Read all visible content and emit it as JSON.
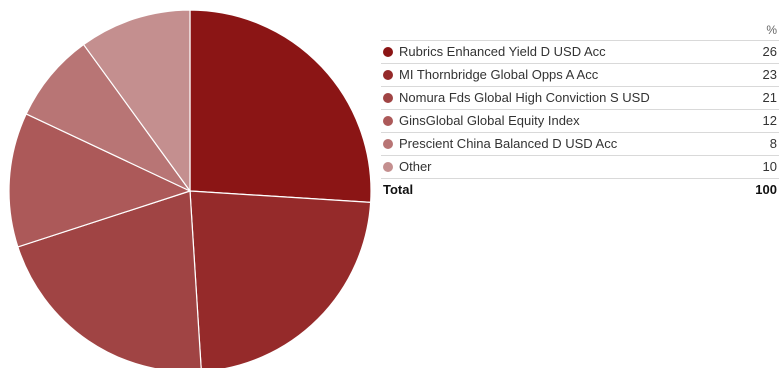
{
  "chart_data": {
    "type": "pie",
    "value_header": "%",
    "slices": [
      {
        "label": "Rubrics Enhanced Yield D USD Acc",
        "value": 26,
        "color": "#8b1515"
      },
      {
        "label": "MI Thornbridge Global Opps A Acc",
        "value": 23,
        "color": "#952a2a"
      },
      {
        "label": "Nomura Fds Global High Conviction S USD",
        "value": 21,
        "color": "#a04444"
      },
      {
        "label": "GinsGlobal Global Equity Index",
        "value": 12,
        "color": "#ac5959"
      },
      {
        "label": "Prescient China Balanced D USD Acc",
        "value": 8,
        "color": "#b87575"
      },
      {
        "label": "Other",
        "value": 10,
        "color": "#c48f8f"
      }
    ],
    "total": {
      "label": "Total",
      "value": 100
    }
  }
}
